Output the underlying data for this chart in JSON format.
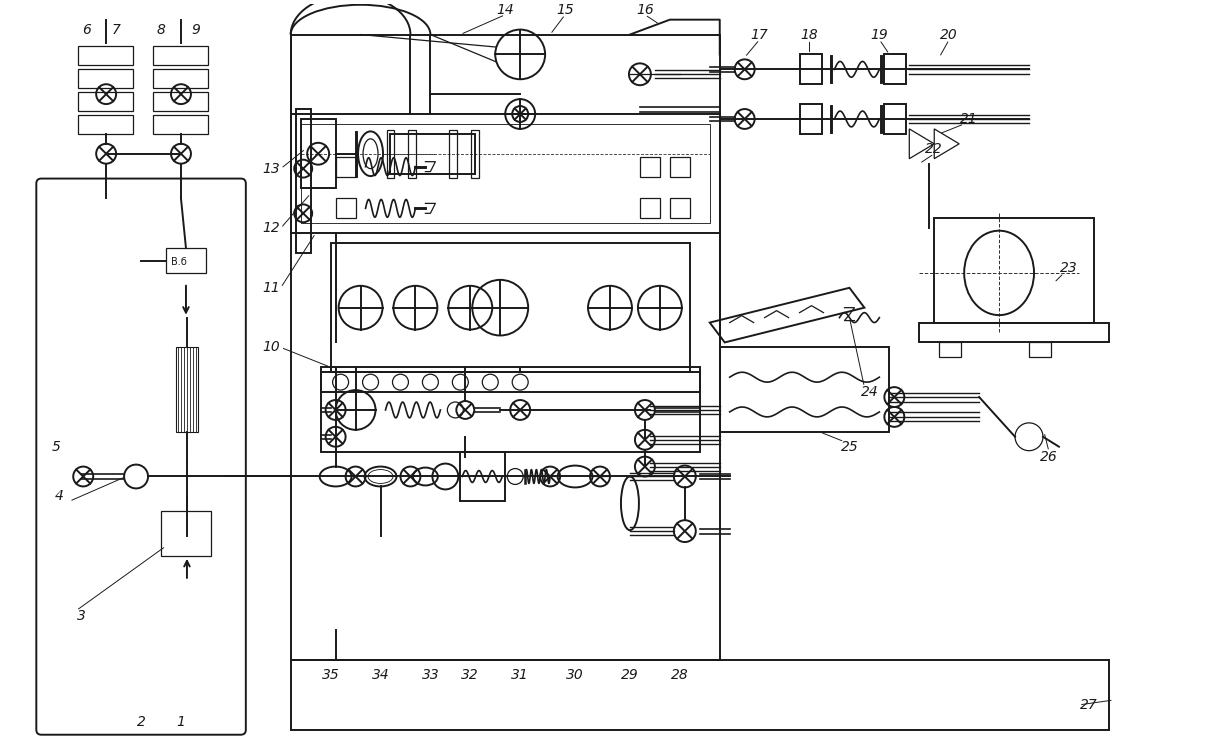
{
  "background": "#ffffff",
  "lc": "#1a1a1a",
  "lw": 1.4,
  "lw2": 0.9,
  "figsize": [
    12.1,
    7.51
  ],
  "dpi": 100
}
